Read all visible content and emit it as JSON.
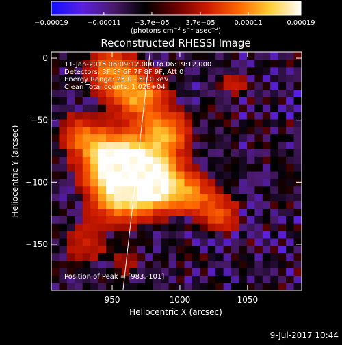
{
  "chart_data": {
    "type": "heatmap",
    "title": "Reconstructed RHESSI Image",
    "xlabel": "Heliocentric X (arcsec)",
    "ylabel": "Heliocentric Y (arcsec)",
    "xlim": [
      905,
      1090
    ],
    "ylim": [
      -187,
      5
    ],
    "x_ticks": [
      950,
      1000,
      1050
    ],
    "x_tick_labels": [
      "950",
      "1000",
      "1050"
    ],
    "y_ticks": [
      0,
      -50,
      -100,
      -150
    ],
    "y_tick_labels": [
      "0",
      "−50",
      "−100",
      "−150"
    ],
    "colorbar": {
      "range": [
        -0.00019,
        0.00019
      ],
      "tick_values": [
        -0.00019,
        -0.00011,
        -3.7e-05,
        3.7e-05,
        0.00011,
        0.00019
      ],
      "tick_labels": [
        "−0.00019",
        "−0.00011",
        "−3.7e−05",
        "3.7e−05",
        "0.00011",
        "0.00019"
      ],
      "units_html": "(photons cm<tspan baseline-shift=\"super\" font-size=\"7\">−2</tspan> s<tspan baseline-shift=\"super\" font-size=\"7\">−1</tspan> asec<tspan baseline-shift=\"super\" font-size=\"7\">−2</tspan>)",
      "colors": [
        "#1010ff",
        "#5a20e0",
        "#4a1a6a",
        "#000000",
        "#6a0000",
        "#cc1a00",
        "#ff6600",
        "#ffcc33",
        "#ffffff"
      ]
    },
    "annotations": [
      "11-Jan-2015 06:09:12.000 to 06:19:12.000",
      "Detectors: 3F 5F 6F 7F 8F 9F, Att 0",
      "Energy Range: 25.0 - 50.0 keV",
      "Clean    Total counts: 1.02E+04"
    ],
    "peak": {
      "x": 983,
      "y": -101,
      "label": "Position of Peak = [983,-101]"
    },
    "limb_line": {
      "x_start": 958,
      "y_start": -187,
      "x_end": 978,
      "y_end": 5
    },
    "sources": [
      {
        "x": 983,
        "y": -101,
        "r": 14,
        "v": 1.0
      },
      {
        "x": 965,
        "y": -85,
        "r": 16,
        "v": 0.85
      },
      {
        "x": 955,
        "y": -110,
        "r": 14,
        "v": 0.75
      },
      {
        "x": 945,
        "y": -80,
        "r": 14,
        "v": 0.7
      },
      {
        "x": 990,
        "y": -60,
        "r": 12,
        "v": 0.6
      },
      {
        "x": 970,
        "y": -30,
        "r": 13,
        "v": 0.65
      },
      {
        "x": 950,
        "y": -10,
        "r": 12,
        "v": 0.55
      },
      {
        "x": 1010,
        "y": -110,
        "r": 10,
        "v": 0.45
      },
      {
        "x": 1030,
        "y": -125,
        "r": 10,
        "v": 0.4
      },
      {
        "x": 925,
        "y": -60,
        "r": 10,
        "v": 0.4
      },
      {
        "x": 930,
        "y": -150,
        "r": 12,
        "v": 0.25
      },
      {
        "x": 960,
        "y": -165,
        "r": 8,
        "v": 0.2
      },
      {
        "x": 1040,
        "y": -20,
        "r": 9,
        "v": 0.2
      }
    ]
  },
  "footer": {
    "date": "9-Jul-2017 10:44"
  }
}
